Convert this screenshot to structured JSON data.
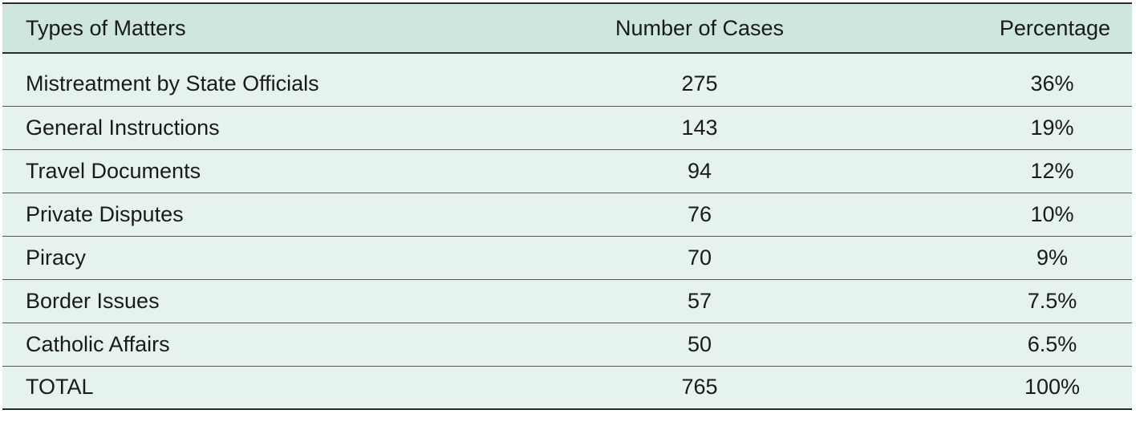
{
  "table": {
    "headers": {
      "type": "Types of Matters",
      "number": "Number of Cases",
      "percentage": "Percentage"
    },
    "rows": [
      {
        "type": "Mistreatment by State Officials",
        "number": "275",
        "percentage": "36%"
      },
      {
        "type": "General Instructions",
        "number": "143",
        "percentage": "19%"
      },
      {
        "type": "Travel Documents",
        "number": "94",
        "percentage": "12%"
      },
      {
        "type": "Private Disputes",
        "number": "76",
        "percentage": "10%"
      },
      {
        "type": "Piracy",
        "number": "70",
        "percentage": "9%"
      },
      {
        "type": "Border Issues",
        "number": "57",
        "percentage": "7.5%"
      },
      {
        "type": "Catholic Affairs",
        "number": "50",
        "percentage": "6.5%"
      },
      {
        "type": "TOTAL",
        "number": "765",
        "percentage": "100%"
      }
    ]
  },
  "colors": {
    "header_background": "#cfe5df",
    "body_background": "#e6f2ef",
    "rule": "#2a2a2a"
  }
}
